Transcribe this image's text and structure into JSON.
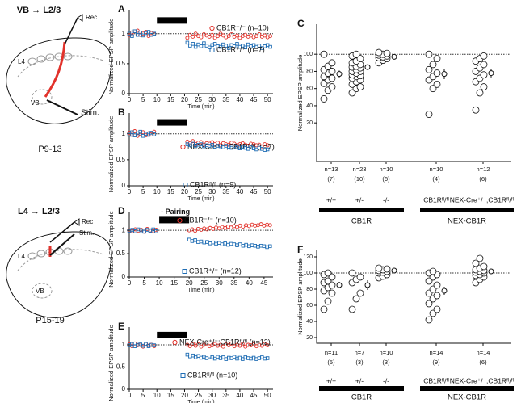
{
  "diagrams": [
    {
      "title": "VB → L2/3",
      "labels": [
        "Rec",
        "L4",
        "VB",
        "Stim."
      ],
      "age": "P9-13"
    },
    {
      "title": "L4 → L2/3",
      "labels": [
        "Rec",
        "Stim.",
        "L4",
        "VB"
      ],
      "age": "P15-19"
    }
  ],
  "chart_data": [
    {
      "type": "scatter",
      "panel": "A",
      "xlabel": "Time (min)",
      "ylabel": "Normalized EPSP amplitude",
      "xlim": [
        0,
        52
      ],
      "xticks": [
        0,
        5,
        10,
        15,
        20,
        25,
        30,
        35,
        40,
        45,
        50
      ],
      "ylim": [
        0,
        1.4
      ],
      "yticks": [
        0,
        0.5,
        1
      ],
      "reference_line": 1,
      "pairing": [
        10,
        21
      ],
      "x": [
        0,
        1,
        2,
        3,
        4,
        5,
        6,
        7,
        8,
        9,
        21,
        22,
        23,
        24,
        25,
        26,
        27,
        28,
        29,
        30,
        31,
        32,
        33,
        34,
        35,
        36,
        37,
        38,
        39,
        40,
        41,
        42,
        43,
        44,
        45,
        46,
        47,
        48,
        49,
        50,
        51
      ],
      "series": [
        {
          "name": "CB1R⁻/⁻ (n=10)",
          "color": "#e2322b",
          "marker": "circle",
          "values": [
            0.97,
            1.02,
            0.99,
            1.05,
            0.98,
            1.0,
            1.03,
            0.96,
            1.01,
            0.99,
            0.93,
            0.98,
            0.95,
            1.0,
            0.96,
            0.94,
            0.99,
            0.97,
            0.95,
            0.98,
            0.93,
            0.96,
            1.0,
            0.97,
            0.94,
            0.96,
            0.99,
            0.95,
            0.97,
            0.93,
            0.96,
            0.98,
            0.95,
            0.97,
            0.94,
            0.96,
            0.99,
            0.95,
            0.97,
            0.94,
            0.96
          ]
        },
        {
          "name": "CB1R⁺/⁺ (n=7)",
          "color": "#1f6db4",
          "marker": "square",
          "values": [
            1.0,
            0.96,
            1.04,
            0.98,
            1.02,
            0.97,
            1.01,
            1.03,
            0.98,
            1.0,
            0.85,
            0.8,
            0.83,
            0.78,
            0.82,
            0.79,
            0.84,
            0.8,
            0.77,
            0.81,
            0.83,
            0.79,
            0.78,
            0.82,
            0.8,
            0.76,
            0.81,
            0.79,
            0.83,
            0.78,
            0.8,
            0.77,
            0.82,
            0.79,
            0.81,
            0.78,
            0.8,
            0.76,
            0.79,
            0.81,
            0.78
          ]
        }
      ]
    },
    {
      "type": "scatter",
      "panel": "B",
      "xlabel": "Time (min)",
      "ylabel": "Normalized EPSP amplitude",
      "xlim": [
        0,
        52
      ],
      "xticks": [
        0,
        5,
        10,
        15,
        20,
        25,
        30,
        35,
        40,
        45,
        50
      ],
      "ylim": [
        0,
        1.4
      ],
      "yticks": [
        0,
        0.5,
        1
      ],
      "reference_line": 1,
      "pairing": [
        10,
        21
      ],
      "x": [
        0,
        1,
        2,
        3,
        4,
        5,
        6,
        7,
        8,
        9,
        21,
        22,
        23,
        24,
        25,
        26,
        27,
        28,
        29,
        30,
        31,
        32,
        33,
        34,
        35,
        36,
        37,
        38,
        39,
        40,
        41,
        42,
        43,
        44,
        45,
        46,
        47,
        48,
        49,
        50
      ],
      "series": [
        {
          "name": "NEX-Cre⁺/⁻;CB1Rᶠˡ/ᶠˡ (n=7)",
          "color": "#e2322b",
          "marker": "circle",
          "values": [
            1.02,
            0.98,
            1.05,
            0.96,
            1.0,
            1.03,
            0.97,
            1.01,
            0.99,
            1.04,
            0.85,
            0.82,
            0.86,
            0.8,
            0.83,
            0.84,
            0.79,
            0.82,
            0.81,
            0.84,
            0.8,
            0.83,
            0.78,
            0.82,
            0.8,
            0.79,
            0.83,
            0.81,
            0.78,
            0.8,
            0.82,
            0.79,
            0.77,
            0.81,
            0.8,
            0.78,
            0.79,
            0.76,
            0.8,
            0.78
          ]
        },
        {
          "name": "CB1Rᶠˡ/ᶠˡ (n=9)",
          "color": "#1f6db4",
          "marker": "square",
          "values": [
            0.98,
            1.03,
            0.97,
            1.01,
            1.04,
            0.96,
            1.0,
            0.98,
            1.02,
            0.99,
            0.8,
            0.78,
            0.81,
            0.77,
            0.79,
            0.8,
            0.76,
            0.78,
            0.77,
            0.79,
            0.75,
            0.77,
            0.76,
            0.74,
            0.77,
            0.75,
            0.73,
            0.76,
            0.74,
            0.72,
            0.75,
            0.73,
            0.71,
            0.74,
            0.72,
            0.7,
            0.73,
            0.71,
            0.69,
            0.7
          ]
        }
      ]
    },
    {
      "type": "dotplot",
      "panel": "C",
      "ylabel": "Normalized EPSP amplitude",
      "ylim": [
        -25,
        135
      ],
      "yticks": [
        20,
        40,
        60,
        80,
        100
      ],
      "reference_line": 100,
      "categories": [
        "+/+",
        "+/-",
        "-/-",
        "CB1Rᶠˡ/ᶠˡ",
        "NEX-Cre⁺/⁻;CB1Rᶠˡ/ᶠˡ"
      ],
      "groups": [
        [
          48,
          58,
          62,
          66,
          70,
          72,
          74,
          78,
          80,
          82,
          86,
          90,
          100
        ],
        [
          55,
          60,
          62,
          65,
          68,
          70,
          72,
          74,
          75,
          76,
          78,
          80,
          80,
          82,
          84,
          85,
          86,
          88,
          90,
          92,
          95,
          98,
          100
        ],
        [
          90,
          93,
          95,
          96,
          97,
          98,
          99,
          100,
          101,
          102
        ],
        [
          30,
          60,
          65,
          70,
          74,
          78,
          82,
          88,
          95,
          100
        ],
        [
          35,
          55,
          62,
          68,
          72,
          76,
          80,
          84,
          88,
          92,
          95,
          98
        ]
      ],
      "means": [
        77,
        85,
        97,
        77,
        78
      ],
      "sems": [
        4,
        3,
        1.5,
        6,
        5
      ],
      "n_labels": [
        "n=13",
        "n=23",
        "n=10",
        "n=10",
        "n=12"
      ],
      "animal_labels": [
        "(7)",
        "(10)",
        "(6)",
        "(4)",
        "(6)"
      ],
      "genotype_groups": [
        "CB1R",
        "NEX-CB1R"
      ]
    },
    {
      "type": "scatter",
      "panel": "D",
      "xlabel": "Time (min)",
      "ylabel": "Normalized EPSP amplitude",
      "annotation": "- Pairing",
      "xlim": [
        0,
        48
      ],
      "xticks": [
        0,
        5,
        10,
        15,
        20,
        25,
        30,
        35,
        40,
        45
      ],
      "ylim": [
        0,
        1.4
      ],
      "yticks": [
        0,
        0.5,
        1
      ],
      "reference_line": 1,
      "pairing": [
        10,
        20
      ],
      "x": [
        0,
        1,
        2,
        3,
        4,
        5,
        6,
        7,
        8,
        9,
        20,
        21,
        22,
        23,
        24,
        25,
        26,
        27,
        28,
        29,
        30,
        31,
        32,
        33,
        34,
        35,
        36,
        37,
        38,
        39,
        40,
        41,
        42,
        43,
        44,
        45,
        46,
        47
      ],
      "series": [
        {
          "name": "CB1R⁻/⁻ (n=10)",
          "color": "#e2322b",
          "marker": "circle",
          "values": [
            1.0,
            0.98,
            1.02,
            0.99,
            1.01,
            0.97,
            1.03,
            1.0,
            0.98,
            1.01,
            1.0,
            1.02,
            0.99,
            1.03,
            1.01,
            1.04,
            1.02,
            1.05,
            1.03,
            1.06,
            1.04,
            1.07,
            1.05,
            1.08,
            1.06,
            1.09,
            1.07,
            1.1,
            1.08,
            1.11,
            1.09,
            1.12,
            1.1,
            1.11,
            1.13,
            1.1,
            1.12,
            1.11
          ]
        },
        {
          "name": "CB1R⁺/⁺ (n=12)",
          "color": "#1f6db4",
          "marker": "square",
          "values": [
            0.99,
            1.01,
            0.98,
            1.02,
            1.0,
            0.97,
            1.01,
            0.99,
            1.02,
            0.98,
            0.8,
            0.77,
            0.79,
            0.75,
            0.76,
            0.74,
            0.75,
            0.72,
            0.74,
            0.71,
            0.73,
            0.7,
            0.72,
            0.69,
            0.71,
            0.7,
            0.68,
            0.7,
            0.67,
            0.69,
            0.66,
            0.68,
            0.67,
            0.65,
            0.67,
            0.66,
            0.64,
            0.66
          ]
        }
      ]
    },
    {
      "type": "scatter",
      "panel": "E",
      "xlabel": "Time (min)",
      "ylabel": "Normalized EPSP amplitude",
      "xlim": [
        0,
        52
      ],
      "xticks": [
        0,
        5,
        10,
        15,
        20,
        25,
        30,
        35,
        40,
        45,
        50
      ],
      "ylim": [
        0,
        1.4
      ],
      "yticks": [
        0,
        0.5,
        1
      ],
      "reference_line": 1,
      "pairing": [
        10,
        21
      ],
      "x": [
        0,
        1,
        2,
        3,
        4,
        5,
        6,
        7,
        8,
        9,
        21,
        22,
        23,
        24,
        25,
        26,
        27,
        28,
        29,
        30,
        31,
        32,
        33,
        34,
        35,
        36,
        37,
        38,
        39,
        40,
        41,
        42,
        43,
        44,
        45,
        46,
        47,
        48,
        49,
        50
      ],
      "series": [
        {
          "name": "NEX-Cre⁺/⁻;CB1Rᶠˡ/ᶠˡ (n=12)",
          "color": "#e2322b",
          "marker": "circle",
          "values": [
            1.01,
            0.97,
            1.03,
            0.99,
            1.0,
            0.96,
            1.02,
            0.98,
            1.0,
            0.97,
            1.0,
            0.97,
            1.02,
            0.98,
            1.01,
            0.96,
            1.0,
            1.03,
            0.97,
            0.99,
            1.02,
            0.98,
            1.0,
            0.96,
            1.01,
            0.99,
            1.03,
            0.97,
            1.0,
            0.98,
            1.02,
            0.96,
            1.0,
            0.99,
            1.01,
            0.97,
            1.0,
            0.98,
            1.02,
            0.99
          ]
        },
        {
          "name": "CB1Rᶠˡ/ᶠˡ (n=10)",
          "color": "#1f6db4",
          "marker": "square",
          "values": [
            0.99,
            1.02,
            0.97,
            1.0,
            1.01,
            0.98,
            1.02,
            0.97,
            1.0,
            0.99,
            0.78,
            0.74,
            0.76,
            0.72,
            0.75,
            0.71,
            0.73,
            0.7,
            0.74,
            0.72,
            0.69,
            0.73,
            0.7,
            0.72,
            0.68,
            0.71,
            0.7,
            0.73,
            0.69,
            0.71,
            0.68,
            0.72,
            0.7,
            0.69,
            0.71,
            0.68,
            0.7,
            0.72,
            0.69,
            0.7
          ]
        }
      ]
    },
    {
      "type": "dotplot",
      "panel": "F",
      "ylabel": "Normalized EPSP amplitude",
      "ylim": [
        13,
        128
      ],
      "yticks": [
        20,
        40,
        60,
        80,
        100,
        120
      ],
      "reference_line": 100,
      "categories": [
        "+/+",
        "+/-",
        "-/-",
        "CB1Rᶠˡ/ᶠˡ",
        "NEX-Cre⁺/⁻;CB1Rᶠˡ/ᶠˡ"
      ],
      "groups": [
        [
          55,
          65,
          75,
          78,
          82,
          85,
          88,
          90,
          95,
          98,
          100
        ],
        [
          55,
          68,
          75,
          88,
          92,
          95,
          100
        ],
        [
          94,
          96,
          98,
          100,
          101,
          102,
          103,
          104,
          105,
          106
        ],
        [
          42,
          50,
          55,
          62,
          68,
          72,
          75,
          80,
          85,
          90,
          95,
          98,
          100,
          102
        ],
        [
          88,
          92,
          95,
          97,
          98,
          100,
          101,
          102,
          103,
          104,
          106,
          108,
          112,
          118
        ]
      ],
      "means": [
        85,
        85,
        103,
        78,
        102
      ],
      "sems": [
        4,
        6,
        2,
        5,
        2
      ],
      "n_labels": [
        "n=11",
        "n=7",
        "n=10",
        "n=14",
        "n=14"
      ],
      "animal_labels": [
        "(5)",
        "(3)",
        "(3)",
        "(9)",
        "(6)"
      ],
      "genotype_groups": [
        "CB1R",
        "NEX-CB1R"
      ]
    }
  ]
}
